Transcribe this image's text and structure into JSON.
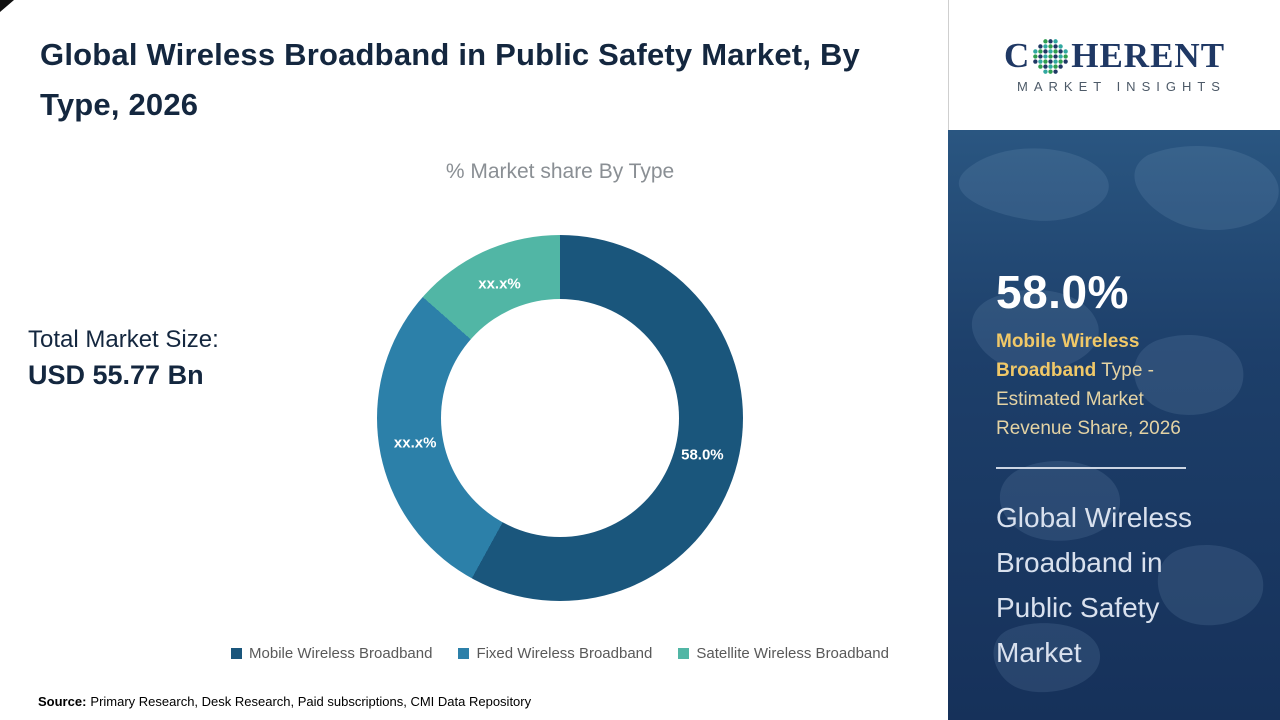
{
  "slide": {
    "title": "Global Wireless Broadband in Public Safety Market, By Type, 2026",
    "total_market": {
      "label": "Total Market Size:",
      "value": "USD 55.77 Bn"
    },
    "source": {
      "label": "Source:",
      "text": "Primary Research, Desk Research, Paid subscriptions, CMI Data Repository"
    }
  },
  "chart_data": {
    "type": "pie",
    "subtype": "donut",
    "title": "% Market share By Type",
    "categories": [
      "Mobile Wireless Broadband",
      "Fixed Wireless Broadband",
      "Satellite Wireless Broadband"
    ],
    "slice_labels": [
      "58.0%",
      "xx.x%",
      "xx.x%"
    ],
    "values_pct": [
      58.0,
      28.5,
      13.5
    ],
    "estimation_note": "Only the Mobile slice is labeled 58.0%; the other two slices are masked as xx.x% and their percentages are estimated from arc angles",
    "colors": [
      "#1a567c",
      "#2c80a9",
      "#51b6a5"
    ],
    "legend_position": "bottom",
    "start_angle": "top",
    "direction": "clockwise"
  },
  "panel": {
    "logo": {
      "brand_c": "C",
      "brand_rest": "HERENT",
      "subtitle": "MARKET INSIGHTS"
    },
    "share_value": "58.0%",
    "share_name": "Mobile Wireless Broadband",
    "share_rest": " Type - Estimated Market Revenue Share, 2026",
    "panel_title": "Global Wireless Broadband in Public Safety Market",
    "colors": {
      "background": "#1d3f6a",
      "gold_bold": "#f0c868",
      "gold_text": "#e4d3a4",
      "light_text": "#d9e1ee"
    }
  }
}
